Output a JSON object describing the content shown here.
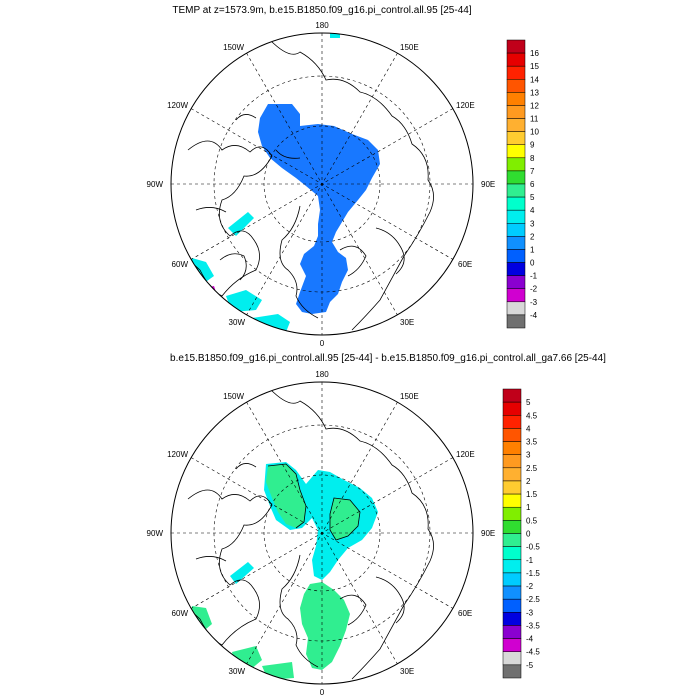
{
  "panels": [
    {
      "title": "TEMP at z=1573.9m, b.e15.B1850.f09_g16.pi_control.all.95 [25-44]",
      "lon_labels": {
        "top": "180",
        "bottom": "0",
        "left": "90W",
        "right": "90E",
        "ul1": "150W",
        "ul2": "120W",
        "ur1": "150E",
        "ur2": "120E",
        "ll1": "60W",
        "ll2": "30W",
        "lr1": "60E",
        "lr2": "30E"
      },
      "colorbar": {
        "labels": [
          "16",
          "15",
          "14",
          "13",
          "12",
          "11",
          "10",
          "9",
          "8",
          "7",
          "6",
          "5",
          "4",
          "3",
          "2",
          "1",
          "0",
          "-1",
          "-2",
          "-3",
          "-4"
        ],
        "colors": [
          "#c0001a",
          "#e60000",
          "#ff2200",
          "#ff5500",
          "#ff8000",
          "#ff9a20",
          "#ffb030",
          "#ffcc30",
          "#ffff00",
          "#80ee00",
          "#30dd30",
          "#30ee90",
          "#00ffcc",
          "#00eeee",
          "#00ccff",
          "#1090ff",
          "#0060ff",
          "#0000e0",
          "#8a00d0",
          "#d000d0",
          "#d8d8d8",
          "#707070"
        ]
      }
    },
    {
      "title": "b.e15.B1850.f09_g16.pi_control.all.95 [25-44] - b.e15.B1850.f09_g16.pi_control.all_ga7.66 [25-44]",
      "lon_labels": {
        "top": "180",
        "bottom": "0",
        "left": "90W",
        "right": "90E",
        "ul1": "150W",
        "ul2": "120W",
        "ur1": "150E",
        "ur2": "120E",
        "ll1": "60W",
        "ll2": "30W",
        "lr1": "60E",
        "lr2": "30E"
      },
      "colorbar": {
        "labels": [
          "5",
          "4.5",
          "4",
          "3.5",
          "3",
          "2.5",
          "2",
          "1.5",
          "1",
          "0.5",
          "0",
          "-0.5",
          "-1",
          "-1.5",
          "-2",
          "-2.5",
          "-3",
          "-3.5",
          "-4",
          "-4.5",
          "-5"
        ],
        "colors": [
          "#c0001a",
          "#e60000",
          "#ff2200",
          "#ff5500",
          "#ff8000",
          "#ff9a20",
          "#ffb030",
          "#ffcc30",
          "#ffff00",
          "#80ee00",
          "#30dd30",
          "#30ee90",
          "#00ffcc",
          "#00eeee",
          "#00ccff",
          "#1090ff",
          "#0060ff",
          "#0000e0",
          "#8a00d0",
          "#d000d0",
          "#d8d8d8",
          "#707070"
        ]
      }
    }
  ],
  "fill_colors": {
    "blue": "#1878ff",
    "cyan": "#00eeee",
    "green": "#30ee90",
    "light_green": "#30dd30"
  }
}
